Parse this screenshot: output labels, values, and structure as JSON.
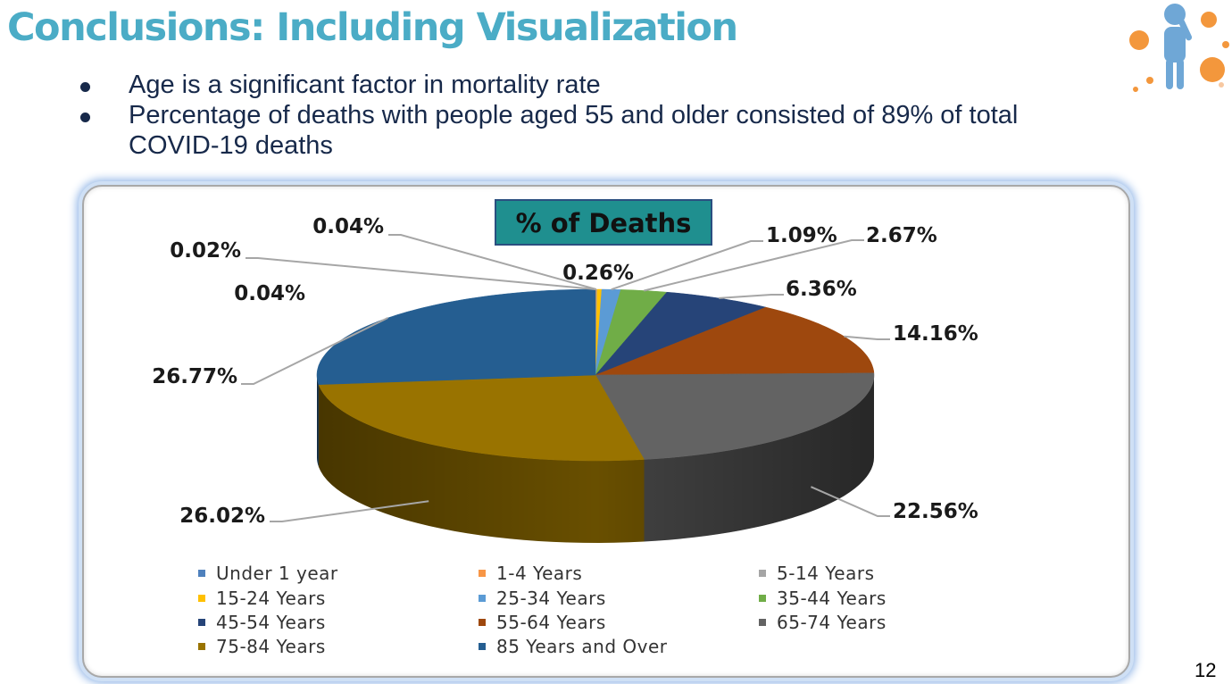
{
  "slide": {
    "title": "Conclusions: Including Visualization",
    "bullets": [
      "Age is a significant factor in mortality rate",
      "Percentage of deaths with people aged 55 and older consisted of 89% of total COVID-19 deaths"
    ],
    "page_number": "12"
  },
  "chart_data": {
    "type": "pie",
    "title": "% of Deaths",
    "title_bg_color": "#1f8f8f",
    "legend_position": "bottom",
    "categories": [
      "Under 1 year",
      "1-4 Years",
      "5-14 Years",
      "15-24 Years",
      "25-34 Years",
      "35-44 Years",
      "45-54 Years",
      "55-64 Years",
      "65-74 Years",
      "75-84 Years",
      "85 Years and Over"
    ],
    "values": [
      0.02,
      0.04,
      0.04,
      0.26,
      1.09,
      2.67,
      6.36,
      14.16,
      22.56,
      26.02,
      26.77
    ],
    "labels": [
      "0.02%",
      "0.04%",
      "0.04%",
      "0.26%",
      "1.09%",
      "2.67%",
      "6.36%",
      "14.16%",
      "22.56%",
      "26.02%",
      "26.77%"
    ],
    "colors": [
      "#4f81bd",
      "#f79646",
      "#a5a5a5",
      "#ffc000",
      "#5b9bd5",
      "#70ad47",
      "#264478",
      "#9e480e",
      "#636363",
      "#997300",
      "#255e91"
    ]
  }
}
